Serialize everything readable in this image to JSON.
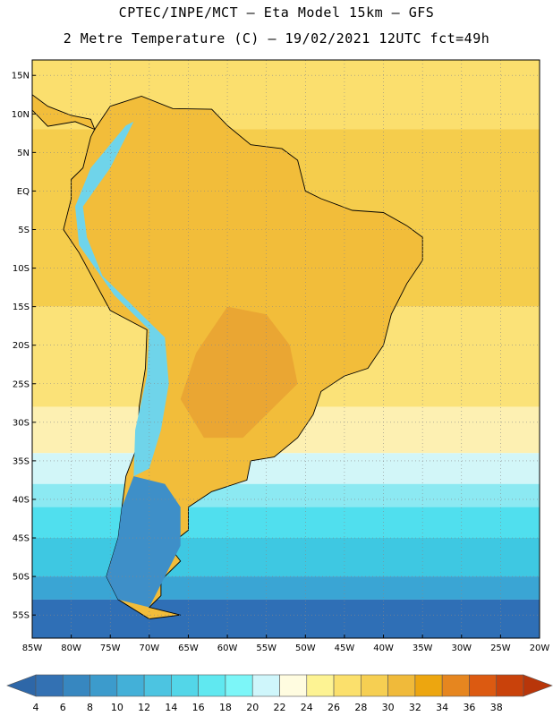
{
  "header": {
    "line1": "CPTEC/INPE/MCT –  Eta Model 15km – GFS",
    "line2": "2 Metre Temperature (C) – 19/02/2021 12UTC fct=49h"
  },
  "map": {
    "lon_range": [
      -85,
      -20
    ],
    "lat_range": [
      -58,
      17
    ],
    "lat_ticks": [
      {
        "value": 15,
        "label": "15N"
      },
      {
        "value": 10,
        "label": "10N"
      },
      {
        "value": 5,
        "label": "5N"
      },
      {
        "value": 0,
        "label": "EQ"
      },
      {
        "value": -5,
        "label": "5S"
      },
      {
        "value": -10,
        "label": "10S"
      },
      {
        "value": -15,
        "label": "15S"
      },
      {
        "value": -20,
        "label": "20S"
      },
      {
        "value": -25,
        "label": "25S"
      },
      {
        "value": -30,
        "label": "30S"
      },
      {
        "value": -35,
        "label": "35S"
      },
      {
        "value": -40,
        "label": "40S"
      },
      {
        "value": -45,
        "label": "45S"
      },
      {
        "value": -50,
        "label": "50S"
      },
      {
        "value": -55,
        "label": "55S"
      }
    ],
    "lon_ticks": [
      {
        "value": -85,
        "label": "85W"
      },
      {
        "value": -80,
        "label": "80W"
      },
      {
        "value": -75,
        "label": "75W"
      },
      {
        "value": -70,
        "label": "70W"
      },
      {
        "value": -65,
        "label": "65W"
      },
      {
        "value": -60,
        "label": "60W"
      },
      {
        "value": -55,
        "label": "55W"
      },
      {
        "value": -50,
        "label": "50W"
      },
      {
        "value": -45,
        "label": "45W"
      },
      {
        "value": -40,
        "label": "40W"
      },
      {
        "value": -35,
        "label": "35W"
      },
      {
        "value": -30,
        "label": "30W"
      },
      {
        "value": -25,
        "label": "25W"
      },
      {
        "value": -20,
        "label": "20W"
      }
    ],
    "field_bands": [
      {
        "lat_from": 17,
        "lat_to": 8,
        "color": "#fbdf6e"
      },
      {
        "lat_from": 8,
        "lat_to": -15,
        "color": "#f5cd4c"
      },
      {
        "lat_from": -15,
        "lat_to": -28,
        "color": "#fbe278"
      },
      {
        "lat_from": -28,
        "lat_to": -34,
        "color": "#fdf0b2"
      },
      {
        "lat_from": -34,
        "lat_to": -38,
        "color": "#d2f6f8"
      },
      {
        "lat_from": -38,
        "lat_to": -41,
        "color": "#8ce9f2"
      },
      {
        "lat_from": -41,
        "lat_to": -45,
        "color": "#50dfee"
      },
      {
        "lat_from": -45,
        "lat_to": -50,
        "color": "#3ec8e2"
      },
      {
        "lat_from": -50,
        "lat_to": -53,
        "color": "#3aa5d4"
      },
      {
        "lat_from": -53,
        "lat_to": -58,
        "color": "#2f6fb6"
      }
    ],
    "land_color": "#f2bd3a",
    "hot_spot_color": "#e9a232",
    "andes_color": "#6fd4ea",
    "patagonia_color": "#3e8fc8"
  },
  "colorbar": {
    "ticks": [
      "4",
      "6",
      "8",
      "10",
      "12",
      "14",
      "16",
      "18",
      "20",
      "22",
      "24",
      "26",
      "28",
      "30",
      "32",
      "34",
      "36",
      "38"
    ],
    "colors": [
      "#3371b3",
      "#3787c0",
      "#3c9bcc",
      "#43b0d8",
      "#4cc4e1",
      "#53d6e8",
      "#60e8f0",
      "#7cf6f8",
      "#cff6fb",
      "#fffce0",
      "#fdf393",
      "#fbe06c",
      "#f6cf52",
      "#f0ba3a",
      "#eda60f",
      "#e6861f",
      "#dc5a11",
      "#c9420b"
    ],
    "low_arrow_color": "#2e67a8",
    "high_arrow_color": "#b8360a"
  }
}
